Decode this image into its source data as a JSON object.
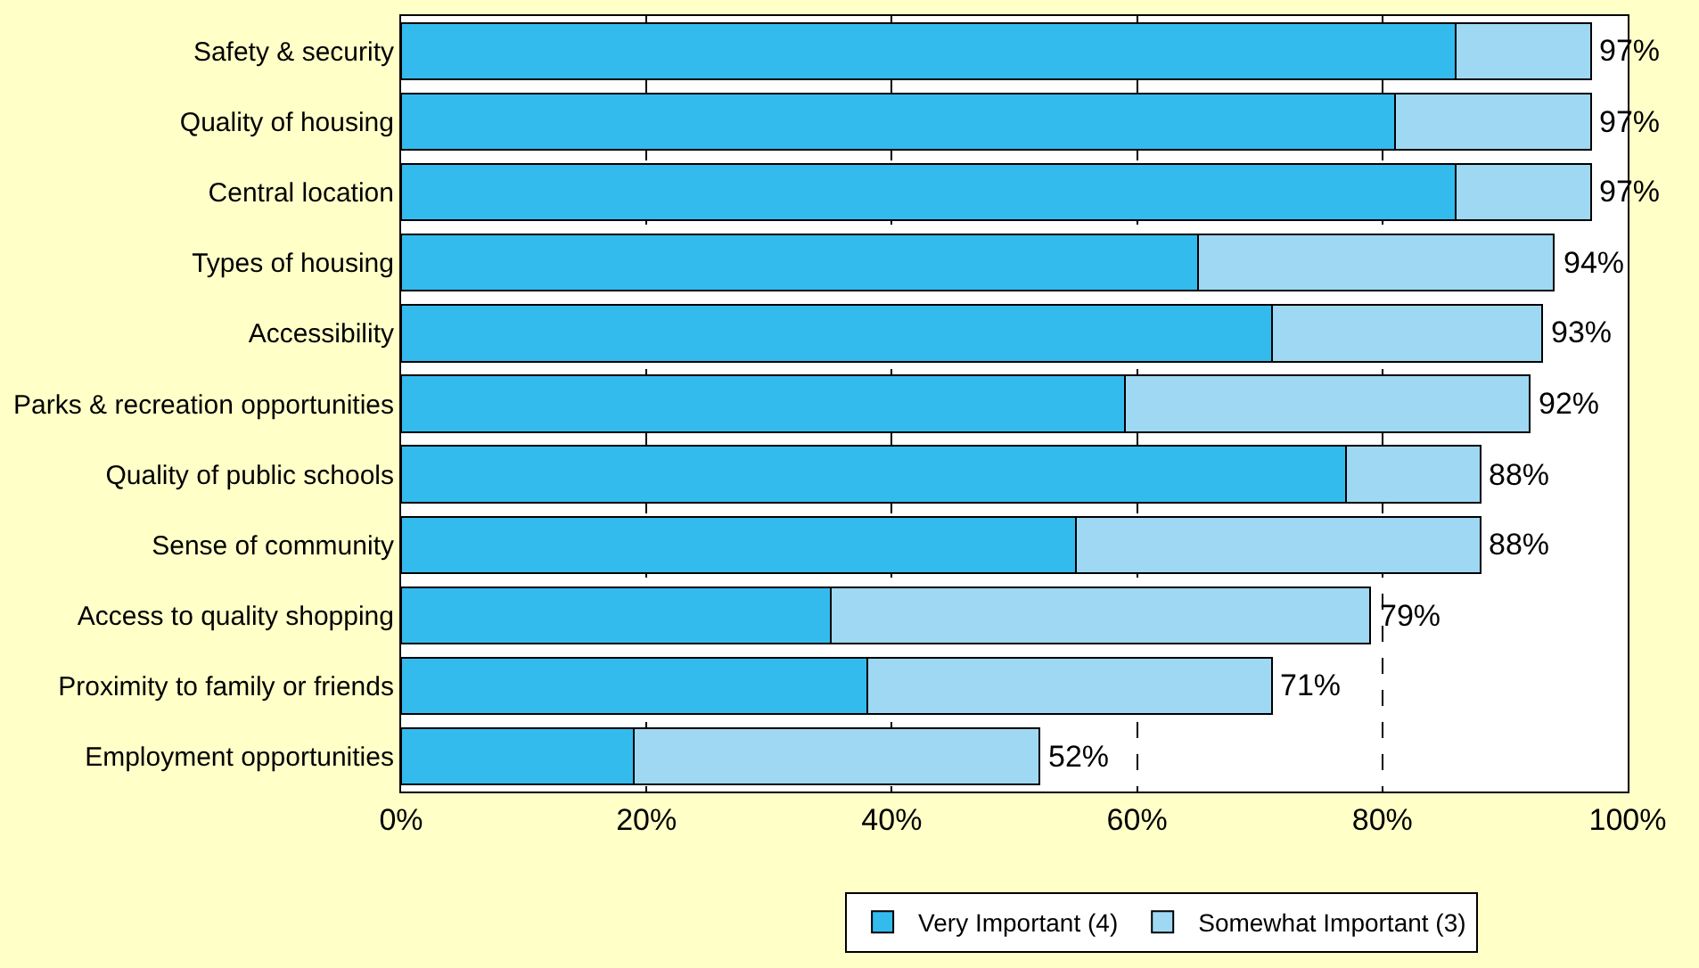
{
  "chart_data": {
    "type": "bar",
    "orientation": "horizontal",
    "stacked": true,
    "categories": [
      "Safety & security",
      "Quality of housing",
      "Central location",
      "Types of housing",
      "Accessibility",
      "Parks & recreation opportunities",
      "Quality of public schools",
      "Sense of community",
      "Access to quality shopping",
      "Proximity to family or friends",
      "Employment opportunities"
    ],
    "series": [
      {
        "name": "Very Important (4)",
        "color": "#33bbee",
        "values": [
          86,
          81,
          86,
          65,
          71,
          59,
          77,
          55,
          35,
          38,
          19
        ]
      },
      {
        "name": "Somewhat Important (3)",
        "color": "#9fd8f2",
        "values": [
          11,
          16,
          11,
          29,
          22,
          33,
          11,
          33,
          44,
          33,
          33
        ]
      }
    ],
    "totals": [
      "97%",
      "97%",
      "97%",
      "94%",
      "93%",
      "92%",
      "88%",
      "88%",
      "79%",
      "71%",
      "52%"
    ],
    "xlim": [
      0,
      100
    ],
    "xticks": [
      {
        "value": 0,
        "label": "0%"
      },
      {
        "value": 20,
        "label": "20%"
      },
      {
        "value": 40,
        "label": "40%"
      },
      {
        "value": 60,
        "label": "60%"
      },
      {
        "value": 80,
        "label": "80%"
      },
      {
        "value": 100,
        "label": "100%"
      }
    ],
    "grid": "x",
    "line_style": "dashed",
    "legend": "bottom"
  }
}
